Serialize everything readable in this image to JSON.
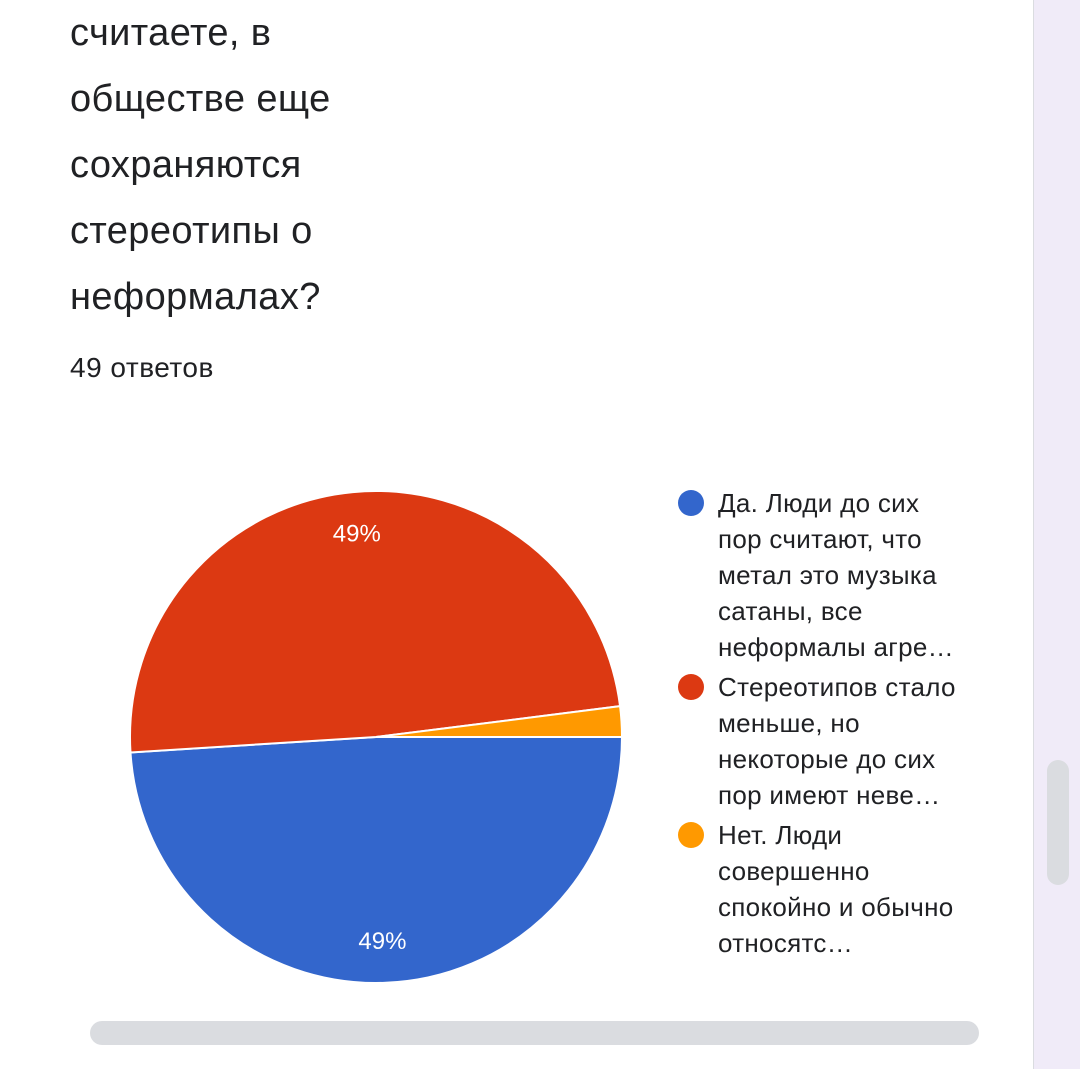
{
  "question": {
    "lines": [
      "считаете, в",
      "обществе еще",
      "сохраняются",
      "стереотипы о",
      "неформалах?"
    ]
  },
  "responses_label": "49 ответов",
  "legend": [
    {
      "text": "Да. Люди до сих пор считают, что метал это музыка сатаны, все неформалы агре…",
      "color": "#3366cc"
    },
    {
      "text": "Стереотипов стало меньше, но некоторые до сих пор имеют неве…",
      "color": "#dc3912"
    },
    {
      "text": "Нет. Люди совершенно спокойно и обычно относятс…",
      "color": "#ff9900"
    }
  ],
  "chart_data": {
    "type": "pie",
    "slices": [
      {
        "label": "Да. Люди до сих пор считают, что метал это музыка сатаны, все неформалы агре…",
        "value": 49,
        "color": "#3366cc",
        "data_label": "49%"
      },
      {
        "label": "Стереотипов стало меньше, но некоторые до сих пор имеют неве…",
        "value": 49,
        "color": "#dc3912",
        "data_label": "49%"
      },
      {
        "label": "Нет. Люди совершенно спокойно и обычно относятс…",
        "value": 2,
        "color": "#ff9900",
        "data_label": ""
      }
    ],
    "legend_position": "right"
  }
}
